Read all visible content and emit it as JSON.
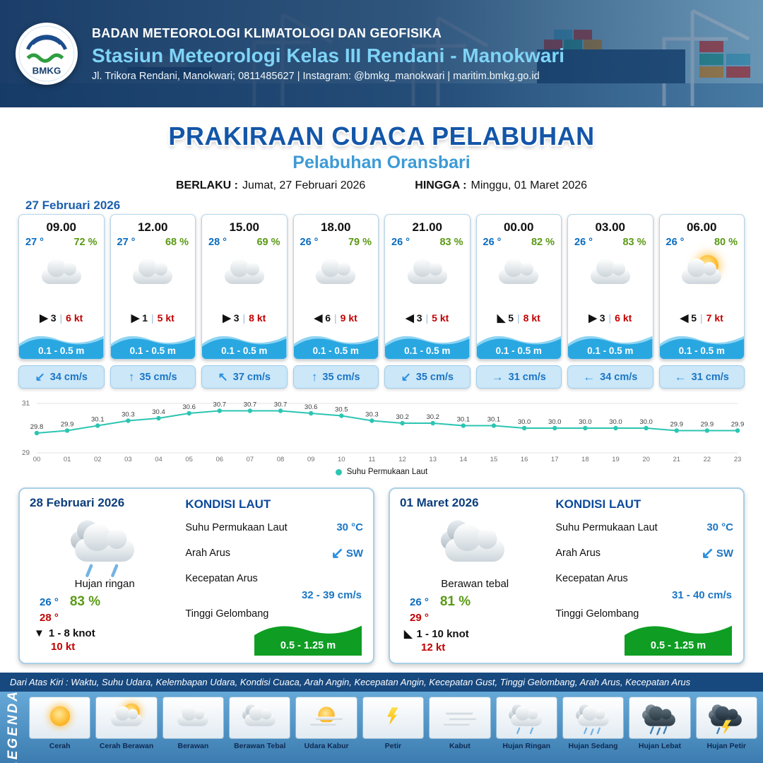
{
  "header": {
    "logo_text": "BMKG",
    "agency": "BADAN METEOROLOGI KLIMATOLOGI DAN GEOFISIKA",
    "station": "Stasiun Meteorologi Kelas III Rendani - Manokwari",
    "contact": "Jl. Trikora Rendani, Manokwari; 0811485627 | Instagram: @bmkg_manokwari | maritim.bmkg.go.id"
  },
  "title": {
    "main": "PRAKIRAAN CUACA PELABUHAN",
    "subtitle": "Pelabuhan Oransbari",
    "berlaku_label": "BERLAKU :",
    "berlaku_value": "Jumat, 27 Februari 2026",
    "hingga_label": "HINGGA :",
    "hingga_value": "Minggu, 01 Maret 2026"
  },
  "forecast_date": "27 Februari 2026",
  "hourly": [
    {
      "time": "09.00",
      "temp": "27 °",
      "humidity": "72 %",
      "icon": "berawan",
      "wind_arrow": "▶",
      "wind_value": "3",
      "wind_gust": "6 kt",
      "wave_height": "0.1 - 0.5 m",
      "current_arrow": "↙",
      "current_speed": "34 cm/s"
    },
    {
      "time": "12.00",
      "temp": "27 °",
      "humidity": "68 %",
      "icon": "berawan",
      "wind_arrow": "▶",
      "wind_value": "1",
      "wind_gust": "5 kt",
      "wave_height": "0.1 - 0.5 m",
      "current_arrow": "↑",
      "current_speed": "35 cm/s"
    },
    {
      "time": "15.00",
      "temp": "28 °",
      "humidity": "69 %",
      "icon": "berawan",
      "wind_arrow": "▶",
      "wind_value": "3",
      "wind_gust": "8 kt",
      "wave_height": "0.1 - 0.5 m",
      "current_arrow": "↖",
      "current_speed": "37 cm/s"
    },
    {
      "time": "18.00",
      "temp": "26 °",
      "humidity": "79 %",
      "icon": "berawan",
      "wind_arrow": "◀",
      "wind_value": "6",
      "wind_gust": "9 kt",
      "wave_height": "0.1 - 0.5 m",
      "current_arrow": "↑",
      "current_speed": "35 cm/s"
    },
    {
      "time": "21.00",
      "temp": "26 °",
      "humidity": "83 %",
      "icon": "berawan",
      "wind_arrow": "◀",
      "wind_value": "3",
      "wind_gust": "5 kt",
      "wave_height": "0.1 - 0.5 m",
      "current_arrow": "↙",
      "current_speed": "35 cm/s"
    },
    {
      "time": "00.00",
      "temp": "26 °",
      "humidity": "82 %",
      "icon": "berawan",
      "wind_arrow": "◣",
      "wind_value": "5",
      "wind_gust": "8 kt",
      "wave_height": "0.1 - 0.5 m",
      "current_arrow": "→",
      "current_speed": "31 cm/s"
    },
    {
      "time": "03.00",
      "temp": "26 °",
      "humidity": "83 %",
      "icon": "berawan",
      "wind_arrow": "▶",
      "wind_value": "3",
      "wind_gust": "6 kt",
      "wave_height": "0.1 - 0.5 m",
      "current_arrow": "←",
      "current_speed": "34 cm/s"
    },
    {
      "time": "06.00",
      "temp": "26 °",
      "humidity": "80 %",
      "icon": "cerah-berawan",
      "wind_arrow": "◀",
      "wind_value": "5",
      "wind_gust": "7 kt",
      "wave_height": "0.1 - 0.5 m",
      "current_arrow": "←",
      "current_speed": "31 cm/s"
    }
  ],
  "chart_data": {
    "type": "line",
    "series_name": "Suhu Permukaan Laut",
    "x": [
      "00",
      "01",
      "02",
      "03",
      "04",
      "05",
      "06",
      "07",
      "08",
      "09",
      "10",
      "11",
      "12",
      "13",
      "14",
      "15",
      "16",
      "17",
      "18",
      "19",
      "20",
      "21",
      "22",
      "23"
    ],
    "values": [
      29.8,
      29.9,
      30.1,
      30.3,
      30.4,
      30.6,
      30.7,
      30.7,
      30.7,
      30.6,
      30.5,
      30.3,
      30.2,
      30.2,
      30.1,
      30.1,
      30.0,
      30.0,
      30.0,
      30.0,
      30.0,
      29.9,
      29.9,
      29.9
    ],
    "ylim": [
      29,
      31
    ],
    "line_color": "#2cc5b2",
    "grid": "minimal",
    "legend_position": "bottom"
  },
  "daily": [
    {
      "date": "28 Februari 2026",
      "icon": "hujan-ringan",
      "condition": "Hujan ringan",
      "temp_min": "26 °",
      "humidity": "83 %",
      "temp_max": "28 °",
      "wind_arrow": "▼",
      "wind_range": "1 - 8 knot",
      "gust": "10 kt",
      "sea": {
        "title": "KONDISI LAUT",
        "sst_label": "Suhu Permukaan Laut",
        "sst_value": "30 °C",
        "current_dir_label": "Arah Arus",
        "current_dir_arrow": "↙",
        "current_dir_value": "SW",
        "current_speed_label": "Kecepatan Arus",
        "current_speed_value": "32 - 39 cm/s",
        "wave_label": "Tinggi Gelombang",
        "wave_value": "0.5 - 1.25 m"
      }
    },
    {
      "date": "01 Maret 2026",
      "icon": "berawan-tebal",
      "condition": "Berawan tebal",
      "temp_min": "26 °",
      "humidity": "81 %",
      "temp_max": "29 °",
      "wind_arrow": "◣",
      "wind_range": "1 - 10 knot",
      "gust": "12 kt",
      "sea": {
        "title": "KONDISI LAUT",
        "sst_label": "Suhu Permukaan Laut",
        "sst_value": "30 °C",
        "current_dir_label": "Arah Arus",
        "current_dir_arrow": "↙",
        "current_dir_value": "SW",
        "current_speed_label": "Kecepatan Arus",
        "current_speed_value": "31 - 40 cm/s",
        "wave_label": "Tinggi Gelombang",
        "wave_value": "0.5 - 1.25 m"
      }
    }
  ],
  "legend": {
    "header_note": "Dari Atas Kiri : Waktu, Suhu Udara, Kelembapan Udara, Kondisi Cuaca, Arah Angin, Kecepatan Angin, Kecepatan Gust, Tinggi Gelombang, Arah Arus, Kecepatan Arus",
    "side_label": "LEGENDA",
    "items": [
      {
        "label": "Cerah",
        "icon": "cerah"
      },
      {
        "label": "Cerah Berawan",
        "icon": "cerah-berawan"
      },
      {
        "label": "Berawan",
        "icon": "berawan"
      },
      {
        "label": "Berawan Tebal",
        "icon": "berawan-tebal"
      },
      {
        "label": "Udara Kabur",
        "icon": "udara-kabur"
      },
      {
        "label": "Petir",
        "icon": "petir"
      },
      {
        "label": "Kabut",
        "icon": "kabut"
      },
      {
        "label": "Hujan Ringan",
        "icon": "hujan-ringan"
      },
      {
        "label": "Hujan Sedang",
        "icon": "hujan-sedang"
      },
      {
        "label": "Hujan Lebat",
        "icon": "hujan-lebat"
      },
      {
        "label": "Hujan Petir",
        "icon": "hujan-petir"
      }
    ]
  }
}
